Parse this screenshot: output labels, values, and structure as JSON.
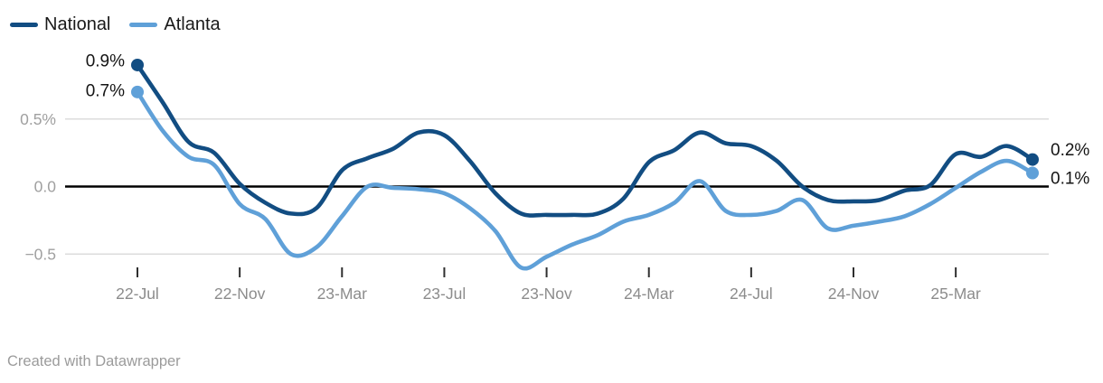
{
  "legend": {
    "items": [
      {
        "label": "National"
      },
      {
        "label": "Atlanta"
      }
    ]
  },
  "footer": {
    "text": "Created with Datawrapper"
  },
  "chart_data": {
    "type": "line",
    "x": [
      "22-Jul",
      "22-Aug",
      "22-Sep",
      "22-Oct",
      "22-Nov",
      "22-Dec",
      "23-Jan",
      "23-Feb",
      "23-Mar",
      "23-Apr",
      "23-May",
      "23-Jun",
      "23-Jul",
      "23-Aug",
      "23-Sep",
      "23-Oct",
      "23-Nov",
      "23-Dec",
      "24-Jan",
      "24-Feb",
      "24-Mar",
      "24-Apr",
      "24-May",
      "24-Jun",
      "24-Jul",
      "24-Aug",
      "24-Sep",
      "24-Oct",
      "24-Nov",
      "24-Dec",
      "25-Jan",
      "25-Feb",
      "25-Mar",
      "25-Apr",
      "25-May",
      "25-Jun"
    ],
    "series": [
      {
        "name": "National",
        "color": "#124d82",
        "values": [
          0.9,
          0.62,
          0.33,
          0.25,
          0.02,
          -0.12,
          -0.2,
          -0.16,
          0.12,
          0.21,
          0.28,
          0.4,
          0.38,
          0.19,
          -0.05,
          -0.2,
          -0.21,
          -0.21,
          -0.2,
          -0.09,
          0.18,
          0.27,
          0.4,
          0.32,
          0.3,
          0.19,
          0.0,
          -0.1,
          -0.11,
          -0.1,
          -0.03,
          0.01,
          0.24,
          0.22,
          0.3,
          0.2
        ],
        "start_label": "0.9%",
        "end_label": "0.2%"
      },
      {
        "name": "Atlanta",
        "color": "#5fa0d8",
        "values": [
          0.7,
          0.41,
          0.22,
          0.16,
          -0.13,
          -0.24,
          -0.5,
          -0.45,
          -0.22,
          0.0,
          -0.01,
          -0.02,
          -0.05,
          -0.16,
          -0.33,
          -0.6,
          -0.52,
          -0.43,
          -0.36,
          -0.26,
          -0.21,
          -0.12,
          0.04,
          -0.18,
          -0.21,
          -0.18,
          -0.1,
          -0.31,
          -0.29,
          -0.26,
          -0.22,
          -0.13,
          -0.01,
          0.11,
          0.19,
          0.1
        ],
        "start_label": "0.7%",
        "end_label": "0.1%"
      }
    ],
    "x_ticks": [
      {
        "index": 0,
        "label": "22-Jul"
      },
      {
        "index": 4,
        "label": "22-Nov"
      },
      {
        "index": 8,
        "label": "23-Mar"
      },
      {
        "index": 12,
        "label": "23-Jul"
      },
      {
        "index": 16,
        "label": "23-Nov"
      },
      {
        "index": 20,
        "label": "24-Mar"
      },
      {
        "index": 24,
        "label": "24-Jul"
      },
      {
        "index": 28,
        "label": "24-Nov"
      },
      {
        "index": 32,
        "label": "25-Mar"
      }
    ],
    "y_ticks": [
      {
        "value": 0.5,
        "label": "0.5%"
      },
      {
        "value": 0.0,
        "label": "0.0"
      },
      {
        "value": -0.5,
        "label": "−0.5"
      }
    ],
    "ylim": [
      -0.65,
      0.95
    ],
    "grid": "horizontal",
    "zero_line": true,
    "legend_position": "top-left"
  },
  "colors": {
    "grid_line": "#dcdcdc",
    "zero_line": "#000000",
    "tick_mark": "#2f2f2f",
    "x_axis_text": "#8c8c8c",
    "y_axis_text": "#a0a0a0",
    "value_label_text": "#141414"
  }
}
